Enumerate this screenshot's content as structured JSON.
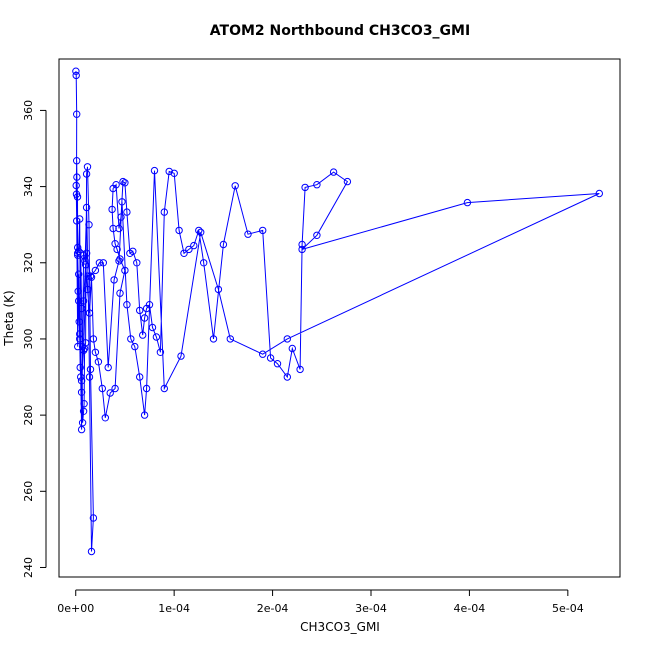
{
  "chart_data": {
    "type": "line",
    "title": "ATOM2 Northbound CH3CO3_GMI",
    "xlabel": "CH3CO3_GMI",
    "ylabel": "Theta (K)",
    "xlim": [
      -1.7e-05,
      0.000553
    ],
    "ylim": [
      237.5,
      373.5
    ],
    "x_ticks": [
      0,
      0.0001,
      0.0002,
      0.0003,
      0.0004,
      0.0005
    ],
    "x_tick_labels": [
      "0e+00",
      "1e-04",
      "2e-04",
      "3e-04",
      "4e-04",
      "5e-04"
    ],
    "y_ticks": [
      240,
      260,
      280,
      300,
      320,
      340,
      360
    ],
    "y_tick_labels": [
      "240",
      "260",
      "280",
      "300",
      "320",
      "340",
      "360"
    ],
    "series_color": "#0000ff",
    "grid": false,
    "markers": "open-circle",
    "series": [
      {
        "x": [
          2e-07,
          5e-07,
          1e-06,
          8e-07,
          1.2e-06,
          1.8e-06,
          2e-06,
          2.5e-06,
          3e-06,
          3.5e-06,
          4e-06,
          5e-06,
          6e-06,
          7e-06,
          8e-06,
          8.5e-06,
          9e-06,
          1e-05,
          1.1e-05,
          1.2e-05,
          1.35e-05,
          1.5e-05,
          1.8e-05,
          1.6e-05,
          1.4e-05,
          1.25e-05,
          1.1e-05,
          9.5e-06,
          8e-06,
          7e-06,
          6e-06,
          5e-06,
          4e-06,
          3e-06,
          2e-06,
          1e-06,
          5e-07,
          1e-06,
          2e-06,
          3e-06,
          4.5e-06,
          6e-06,
          8e-06,
          1e-05,
          1.2e-05,
          1.4e-05,
          1.6e-05,
          1.8e-05,
          2e-05,
          2.3e-05,
          2.7e-05,
          3e-05,
          3.5e-05,
          4e-05,
          4.5e-05,
          5e-05,
          4.5e-05,
          4.2e-05,
          4e-05,
          3.8e-05,
          3.7e-05,
          3.8e-05,
          4.1e-05,
          4.4e-05,
          4.6e-05,
          4.8e-05,
          5e-05,
          5.2e-05,
          5.5e-05,
          5.8e-05,
          6.2e-05,
          6.5e-05,
          6.8e-05,
          7e-05,
          7.2e-05,
          7.5e-05,
          7.8e-05,
          8.2e-05,
          8.6e-05,
          9e-05,
          9.5e-05,
          0.0001,
          0.000105,
          0.00011,
          0.000115,
          0.00012,
          0.000125,
          0.00013,
          0.00014,
          0.00015,
          0.000162,
          0.000175,
          0.00019,
          0.000198,
          0.000205,
          0.000215,
          0.00022,
          0.000228,
          0.00023,
          0.000233,
          0.000245,
          0.000262,
          0.000276,
          0.000245,
          0.00023,
          0.000398,
          0.000532,
          0.000215,
          0.00019,
          0.000157,
          0.000145,
          0.000127,
          0.000107,
          9e-05,
          8e-05,
          7.2e-05,
          7e-05,
          6.5e-05,
          6e-05,
          5.6e-05,
          5.2e-05,
          4.7e-05,
          4.4e-05,
          3.9e-05,
          3.3e-05,
          2.8e-05,
          2.4e-05,
          2e-05,
          1.5e-05,
          1.1e-05,
          8e-06,
          6e-06,
          4e-06,
          2e-06
        ],
        "y": [
          370.3,
          369.2,
          359.0,
          338.0,
          342.5,
          337.3,
          322.5,
          312.5,
          310.0,
          304.5,
          301.3,
          322.5,
          308.0,
          278.0,
          281.0,
          283.0,
          297.5,
          299.0,
          343.3,
          345.2,
          330.0,
          292.0,
          253.0,
          244.2,
          290.0,
          316.5,
          334.5,
          320.5,
          322.0,
          298.0,
          276.2,
          290.0,
          331.5,
          323.0,
          324.0,
          346.8,
          340.3,
          331.0,
          298.0,
          317.0,
          292.5,
          286.0,
          310.0,
          319.5,
          313.0,
          306.8,
          316.2,
          300.0,
          296.5,
          294.0,
          287.0,
          279.3,
          285.8,
          287.0,
          312.0,
          318.0,
          321.0,
          323.5,
          325.0,
          329.0,
          334.0,
          339.5,
          340.5,
          329.0,
          332.0,
          341.3,
          341.0,
          333.3,
          322.5,
          323.0,
          320.0,
          307.5,
          301.0,
          305.5,
          308.0,
          309.0,
          303.0,
          300.5,
          296.5,
          333.3,
          344.0,
          343.5,
          328.5,
          322.5,
          323.5,
          324.5,
          328.5,
          320.0,
          300.0,
          324.8,
          340.2,
          327.5,
          328.5,
          295.0,
          293.5,
          290.0,
          297.5,
          292.0,
          324.8,
          339.8,
          340.5,
          343.8,
          341.3,
          327.2,
          323.5,
          335.8,
          338.2,
          300.0,
          296.0,
          300.0,
          313.0,
          328.0,
          295.5,
          287.0,
          344.2,
          287.0,
          280.0,
          290.0,
          298.0,
          300.0,
          309.0,
          336.0,
          320.5,
          315.5,
          292.5,
          320.0,
          320.0,
          318.0,
          316.5,
          322.5,
          297.0,
          289.0,
          300.0,
          322.0
        ]
      }
    ]
  }
}
